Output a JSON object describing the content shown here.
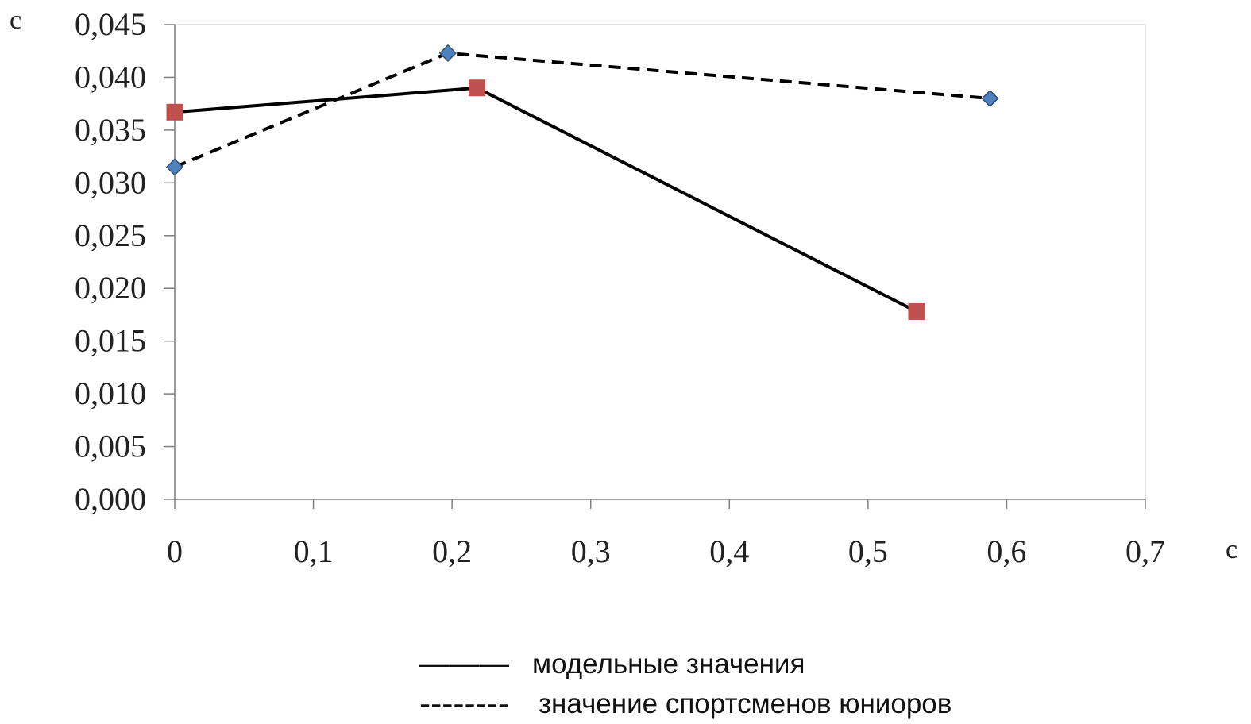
{
  "chart_data": {
    "type": "line",
    "y_unit": "с",
    "x_unit": "с",
    "xlim": [
      0,
      0.7
    ],
    "ylim": [
      0,
      0.045
    ],
    "x_ticks": [
      "0",
      "0,1",
      "0,2",
      "0,3",
      "0,4",
      "0,5",
      "0,6",
      "0,7"
    ],
    "y_ticks": [
      "0,000",
      "0,005",
      "0,010",
      "0,015",
      "0,020",
      "0,025",
      "0,030",
      "0,035",
      "0,040",
      "0,045"
    ],
    "grid": false,
    "legend_position": "bottom-center",
    "series": [
      {
        "key": "model",
        "name": "модельные значения",
        "legend_marker": "———",
        "line_style": "solid",
        "marker": "square",
        "color": "#c0504d",
        "line_color": "#000000",
        "x": [
          0,
          0.218,
          0.535
        ],
        "y": [
          0.0367,
          0.039,
          0.0178
        ]
      },
      {
        "key": "juniors",
        "name": "значение спортсменов юниоров",
        "legend_marker": "--------",
        "line_style": "dashed",
        "marker": "diamond",
        "color": "#4f81bd",
        "line_color": "#000000",
        "x": [
          0,
          0.197,
          0.588
        ],
        "y": [
          0.0315,
          0.0423,
          0.038
        ]
      }
    ]
  }
}
